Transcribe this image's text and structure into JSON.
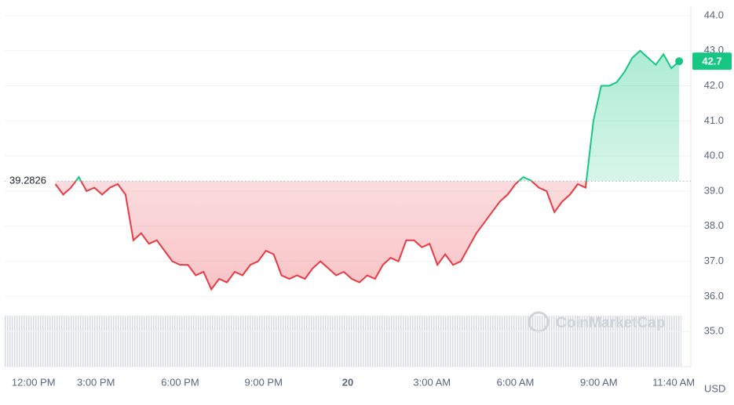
{
  "chart_data": {
    "type": "line",
    "currency": "USD",
    "watermark": "CoinMarketCap",
    "baseline": 39.2826,
    "baseline_label": "39.2826",
    "current_value": 42.7,
    "current_label": "42.7",
    "up_color": "#16c784",
    "down_color": "#ea3943",
    "grid": true,
    "ylim": [
      34,
      44.4
    ],
    "yticks": [
      {
        "value": 35,
        "label": "35.0"
      },
      {
        "value": 36,
        "label": "36.0"
      },
      {
        "value": 37,
        "label": "37.0"
      },
      {
        "value": 38,
        "label": "38.0"
      },
      {
        "value": 39,
        "label": "39.0"
      },
      {
        "value": 40,
        "label": "40.0"
      },
      {
        "value": 41,
        "label": "41.0"
      },
      {
        "value": 42,
        "label": "42.0"
      },
      {
        "value": 43,
        "label": "43.0"
      },
      {
        "value": 44,
        "label": "44.0"
      }
    ],
    "xlim": [
      -6.5,
      81.5
    ],
    "xticks": [
      {
        "value": -2.8,
        "label": "12:00 PM"
      },
      {
        "value": 5.2,
        "label": "3:00 PM"
      },
      {
        "value": 16,
        "label": "6:00 PM"
      },
      {
        "value": 26.7,
        "label": "9:00 PM"
      },
      {
        "value": 37.5,
        "label": "20"
      },
      {
        "value": 48.3,
        "label": "3:00 AM"
      },
      {
        "value": 59,
        "label": "6:00 AM"
      },
      {
        "value": 69.7,
        "label": "9:00 AM"
      },
      {
        "value": 79.3,
        "label": "11:40 AM"
      }
    ],
    "values": [
      39.2,
      38.9,
      39.1,
      39.4,
      39.0,
      39.1,
      38.9,
      39.1,
      39.2,
      38.9,
      37.6,
      37.8,
      37.5,
      37.6,
      37.3,
      37.0,
      36.9,
      36.9,
      36.6,
      36.7,
      36.2,
      36.5,
      36.4,
      36.7,
      36.6,
      36.9,
      37.0,
      37.3,
      37.2,
      36.6,
      36.5,
      36.6,
      36.5,
      36.8,
      37.0,
      36.8,
      36.6,
      36.7,
      36.5,
      36.4,
      36.6,
      36.5,
      36.9,
      37.1,
      37.0,
      37.6,
      37.6,
      37.4,
      37.5,
      36.9,
      37.2,
      36.9,
      37.0,
      37.4,
      37.8,
      38.1,
      38.4,
      38.7,
      38.9,
      39.2,
      39.4,
      39.3,
      39.1,
      39.0,
      38.4,
      38.7,
      38.9,
      39.2,
      39.1,
      41.0,
      42.0,
      42.0,
      42.1,
      42.4,
      42.8,
      43.0,
      42.8,
      42.6,
      42.9,
      42.5,
      42.7
    ]
  }
}
